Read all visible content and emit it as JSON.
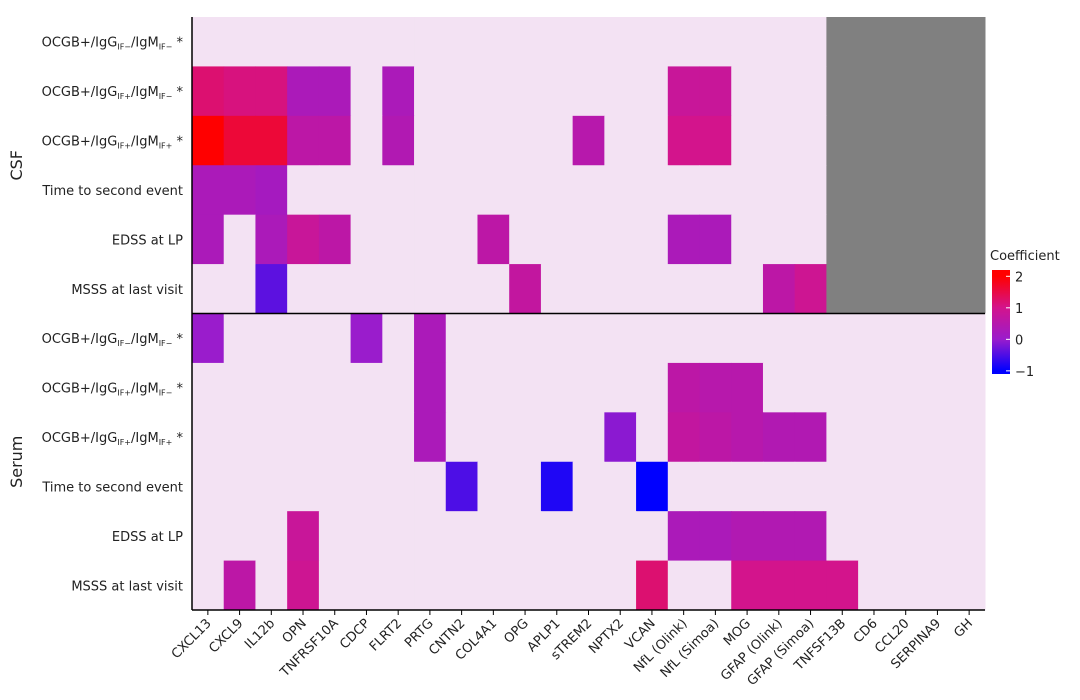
{
  "chart_data": {
    "type": "heatmap",
    "columns": [
      "CXCL13",
      "CXCL9",
      "IL12b",
      "OPN",
      "TNFRSF10A",
      "CDCP",
      "FLRT2",
      "PRTG",
      "CNTN2",
      "COL4A1",
      "OPG",
      "APLP1",
      "sTREM2",
      "NPTX2",
      "VCAN",
      "NfL (Olink)",
      "NfL (Simoa)",
      "MOG",
      "GFAP (Olink)",
      "GFAP (Simoa)",
      "TNFSF13B",
      "CD6",
      "CCL20",
      "SERPINA9",
      "GH"
    ],
    "panels": [
      {
        "name": "CSF",
        "rows": [
          [
            "OCGB+/IgG",
            "IF−",
            "/IgM",
            "IF−",
            " *"
          ],
          [
            "OCGB+/IgG",
            "IF+",
            "/IgM",
            "IF−",
            " *"
          ],
          [
            "OCGB+/IgG",
            "IF+",
            "/IgM",
            "IF+",
            " *"
          ],
          [
            "Time to second event"
          ],
          [
            "EDSS at LP"
          ],
          [
            "MSSS at last visit"
          ]
        ],
        "not_measured": [
          20,
          21,
          22,
          23,
          24
        ],
        "values": [
          [
            null,
            null,
            null,
            null,
            null,
            null,
            null,
            null,
            null,
            null,
            null,
            null,
            null,
            null,
            null,
            null,
            null,
            null,
            null,
            null,
            null,
            null,
            null,
            null,
            null
          ],
          [
            1.2,
            1.1,
            1.1,
            0.3,
            0.3,
            null,
            0.3,
            null,
            null,
            null,
            null,
            null,
            null,
            null,
            null,
            0.8,
            0.8,
            null,
            null,
            null,
            null,
            null,
            null,
            null,
            null
          ],
          [
            2.1,
            1.6,
            1.6,
            0.6,
            0.6,
            null,
            0.4,
            null,
            null,
            null,
            null,
            null,
            0.5,
            null,
            null,
            1.0,
            1.0,
            null,
            null,
            null,
            null,
            null,
            null,
            null,
            null
          ],
          [
            0.3,
            0.3,
            0.2,
            null,
            null,
            null,
            null,
            null,
            null,
            null,
            null,
            null,
            null,
            null,
            null,
            null,
            null,
            null,
            null,
            null,
            null,
            null,
            null,
            null,
            null
          ],
          [
            0.3,
            null,
            0.3,
            0.8,
            0.6,
            null,
            null,
            null,
            null,
            0.6,
            null,
            null,
            null,
            null,
            null,
            0.3,
            0.3,
            null,
            null,
            null,
            null,
            null,
            null,
            null,
            null
          ],
          [
            null,
            null,
            -0.4,
            null,
            null,
            null,
            null,
            null,
            null,
            null,
            0.7,
            null,
            null,
            null,
            null,
            null,
            null,
            null,
            0.6,
            0.9,
            null,
            null,
            null,
            null,
            null
          ]
        ]
      },
      {
        "name": "Serum",
        "rows": [
          [
            "OCGB+/IgG",
            "IF−",
            "/IgM",
            "IF−",
            " *"
          ],
          [
            "OCGB+/IgG",
            "IF+",
            "/IgM",
            "IF−",
            " *"
          ],
          [
            "OCGB+/IgG",
            "IF+",
            "/IgM",
            "IF+",
            " *"
          ],
          [
            "Time to second event"
          ],
          [
            "EDSS at LP"
          ],
          [
            "MSSS at last visit"
          ]
        ],
        "not_measured": [],
        "values": [
          [
            0.0,
            null,
            null,
            null,
            null,
            0.0,
            null,
            0.3,
            null,
            null,
            null,
            null,
            null,
            null,
            null,
            null,
            null,
            null,
            null,
            null,
            null,
            null,
            null,
            null,
            null
          ],
          [
            null,
            null,
            null,
            null,
            null,
            null,
            null,
            0.3,
            null,
            null,
            null,
            null,
            null,
            null,
            null,
            0.6,
            0.5,
            0.5,
            null,
            null,
            null,
            null,
            null,
            null,
            null
          ],
          [
            null,
            null,
            null,
            null,
            null,
            null,
            null,
            0.3,
            null,
            null,
            null,
            null,
            null,
            -0.1,
            null,
            0.7,
            0.6,
            0.5,
            0.4,
            0.4,
            null,
            null,
            null,
            null,
            null
          ],
          [
            null,
            null,
            null,
            null,
            null,
            null,
            null,
            null,
            -0.5,
            null,
            null,
            -0.8,
            null,
            null,
            -1.0,
            null,
            null,
            null,
            null,
            null,
            null,
            null,
            null,
            null,
            null
          ],
          [
            null,
            null,
            null,
            0.8,
            null,
            null,
            null,
            null,
            null,
            null,
            null,
            null,
            null,
            null,
            null,
            0.3,
            0.3,
            0.4,
            0.4,
            0.4,
            null,
            null,
            null,
            null,
            null
          ],
          [
            null,
            0.6,
            null,
            0.9,
            null,
            null,
            null,
            null,
            null,
            null,
            null,
            null,
            null,
            null,
            1.2,
            null,
            null,
            1.0,
            1.0,
            1.0,
            1.0,
            null,
            null,
            null,
            null
          ]
        ]
      }
    ],
    "legend_title": "Coefficient",
    "clim": [
      -1.1,
      2.2
    ],
    "cticks": [
      {
        "value": -1,
        "label": "−1"
      },
      0,
      1,
      2
    ],
    "color_stops": [
      "#0000ff",
      "#9a1ccc",
      "#d3148c",
      "#ff0000"
    ],
    "na_color": "#f3e2f3",
    "missing_color": "#808080"
  }
}
